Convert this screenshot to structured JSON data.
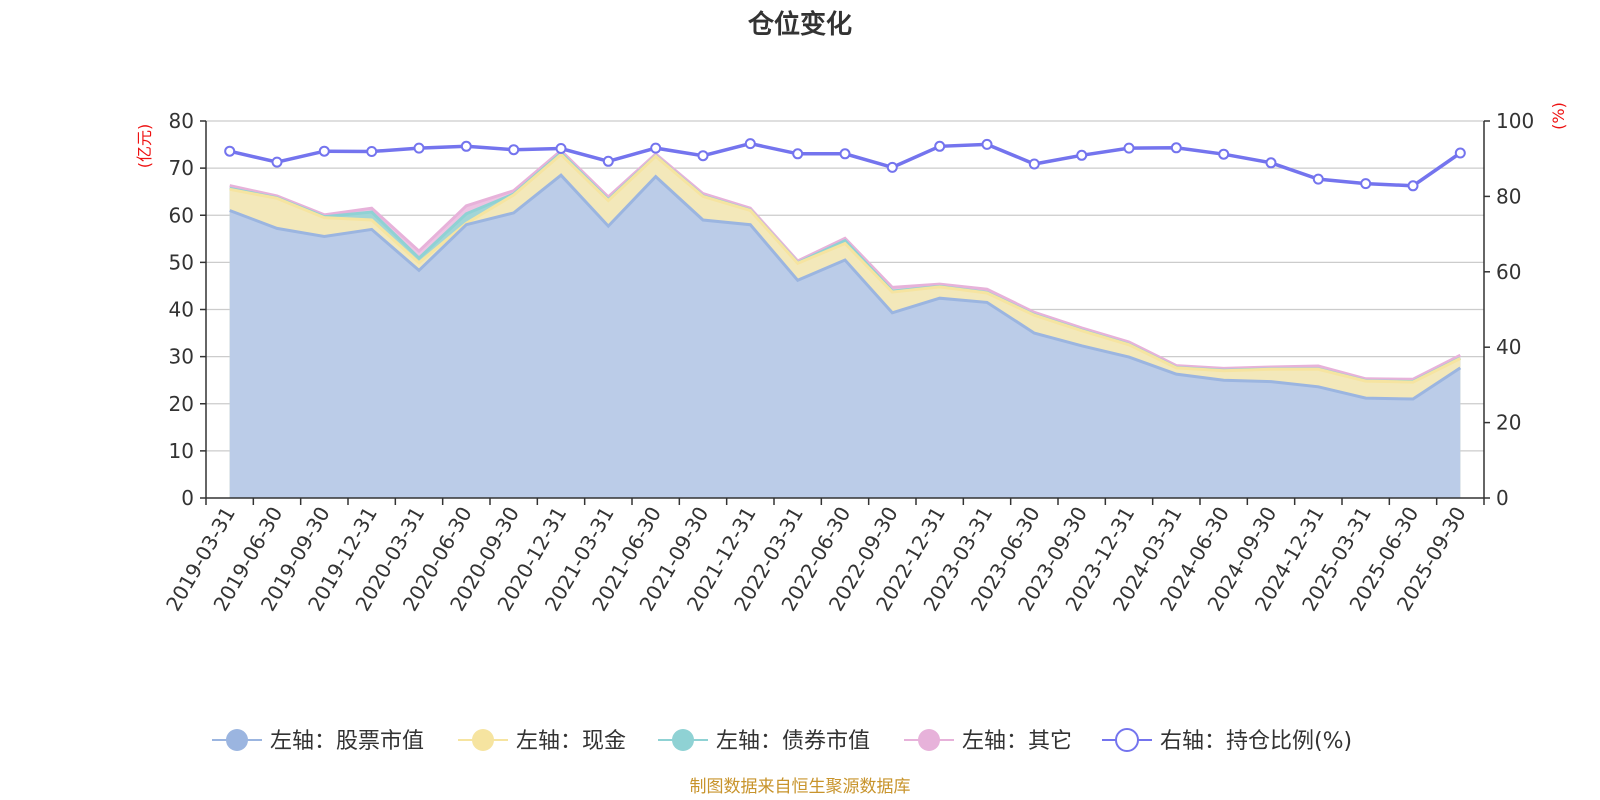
{
  "chart_data": {
    "type": "area",
    "title": "仓位变化",
    "left_unit": "(亿元)",
    "right_unit": "(%)",
    "left_ylim": [
      0,
      80
    ],
    "left_ticks": [
      "0",
      "10",
      "20",
      "30",
      "40",
      "50",
      "60",
      "70",
      "80"
    ],
    "right_ylim": [
      0,
      100
    ],
    "right_ticks": [
      "0",
      "20",
      "40",
      "60",
      "80",
      "100"
    ],
    "categories": [
      "2019-03-31",
      "2019-06-30",
      "2019-09-30",
      "2019-12-31",
      "2020-03-31",
      "2020-06-30",
      "2020-09-30",
      "2020-12-31",
      "2021-03-31",
      "2021-06-30",
      "2021-09-30",
      "2021-12-31",
      "2022-03-31",
      "2022-06-30",
      "2022-09-30",
      "2022-12-31",
      "2023-03-31",
      "2023-06-30",
      "2023-09-30",
      "2023-12-31",
      "2024-03-31",
      "2024-06-30",
      "2024-09-30",
      "2024-12-31",
      "2025-03-31",
      "2025-06-30",
      "2025-09-30"
    ],
    "series": [
      {
        "name": "左轴：股票市值",
        "axis": "left",
        "stack": true,
        "color": "#9bb5e0",
        "fill": "#b7caea",
        "values": [
          61.0,
          57.2,
          55.5,
          57.0,
          48.3,
          58.0,
          60.5,
          68.5,
          57.7,
          68.2,
          59.0,
          58.0,
          46.2,
          50.5,
          39.3,
          42.4,
          41.5,
          35.0,
          32.3,
          29.9,
          26.3,
          25.0,
          24.7,
          23.6,
          21.2,
          21.0,
          27.6
        ]
      },
      {
        "name": "左轴：现金",
        "axis": "left",
        "stack": true,
        "color": "#f6e4a0",
        "fill": "#f8e9b8",
        "values": [
          4.5,
          6.4,
          4.0,
          2.0,
          1.6,
          0.3,
          3.8,
          4.4,
          5.4,
          4.3,
          5.0,
          3.0,
          3.6,
          3.5,
          4.4,
          2.4,
          2.0,
          3.8,
          3.2,
          2.6,
          1.3,
          2.0,
          2.6,
          3.7,
          3.6,
          3.6,
          2.0
        ]
      },
      {
        "name": "左轴：债券市值",
        "axis": "left",
        "stack": true,
        "color": "#8fd2d4",
        "fill": "#9ed6d6",
        "values": [
          0.2,
          0.1,
          0.2,
          1.7,
          1.0,
          2.0,
          0.2,
          0.3,
          0.2,
          0.1,
          0.1,
          0.1,
          0.1,
          0.6,
          0.2,
          0.1,
          0.1,
          0.1,
          0.1,
          0.1,
          0.1,
          0.1,
          0.1,
          0.1,
          0.1,
          0.1,
          0.1
        ]
      },
      {
        "name": "左轴：其它",
        "axis": "left",
        "stack": true,
        "color": "#e7b2da",
        "fill": "#ecc0e0",
        "values": [
          0.6,
          0.4,
          0.4,
          0.8,
          1.5,
          1.7,
          0.7,
          0.5,
          0.6,
          0.4,
          0.5,
          0.4,
          0.4,
          0.5,
          0.8,
          0.5,
          0.7,
          0.5,
          0.5,
          0.5,
          0.4,
          0.4,
          0.4,
          0.6,
          0.4,
          0.5,
          0.6
        ]
      },
      {
        "name": "右轴：持仓比例(%)",
        "axis": "right",
        "stack": false,
        "color": "#7474ee",
        "values": [
          92.0,
          89.1,
          92.0,
          91.9,
          92.8,
          93.3,
          92.4,
          92.7,
          89.3,
          92.8,
          90.8,
          94.0,
          91.3,
          91.3,
          87.7,
          93.3,
          93.8,
          88.6,
          90.9,
          92.8,
          92.9,
          91.2,
          88.9,
          84.6,
          83.4,
          82.8,
          91.5
        ]
      }
    ],
    "legend_position": "bottom"
  },
  "source_text": "制图数据来自恒生聚源数据库"
}
